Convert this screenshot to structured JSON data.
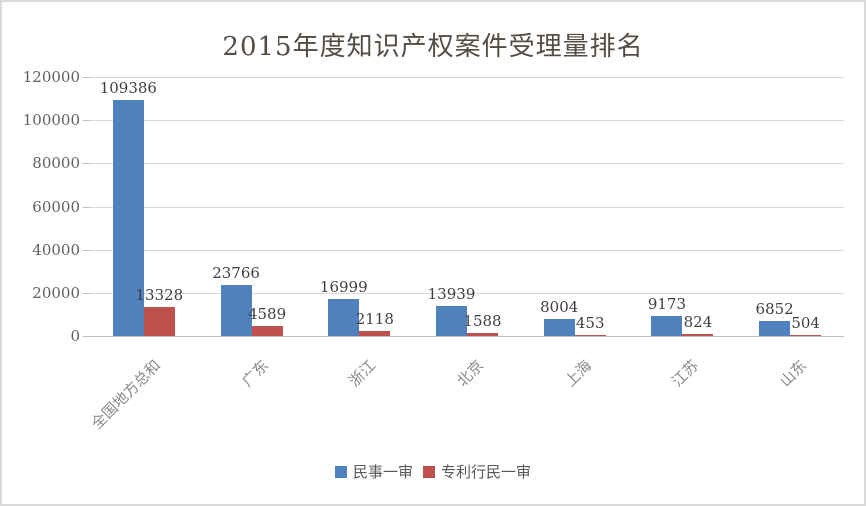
{
  "chart_data": {
    "type": "bar",
    "title": "2015年度知识产权案件受理量排名",
    "categories": [
      "全国地方总和",
      "广东",
      "浙江",
      "北京",
      "上海",
      "江苏",
      "山东"
    ],
    "series": [
      {
        "name": "民事一审",
        "color": "#4f81bd",
        "values": [
          109386,
          23766,
          16999,
          13939,
          8004,
          9173,
          6852
        ]
      },
      {
        "name": "专利行民一审",
        "color": "#c0504d",
        "values": [
          13328,
          4589,
          2118,
          1588,
          453,
          824,
          504
        ]
      }
    ],
    "ylim": [
      0,
      120000
    ],
    "ytick_interval": 20000,
    "yticks": [
      "0",
      "20000",
      "40000",
      "60000",
      "80000",
      "100000",
      "120000"
    ],
    "grid": true,
    "data_labels": true,
    "legend_position": "bottom",
    "colors": {
      "gridline": "#d9d9d9",
      "axis_line": "#c3c3c3",
      "frame_border": "#d9d9d9",
      "title_text": "#544c45",
      "y_label_text": "#5f5f5f",
      "x_label_text": "#8a8a8a",
      "data_label_text": "#3f3f3f",
      "legend_text": "#595959",
      "background": "#ffffff"
    }
  }
}
